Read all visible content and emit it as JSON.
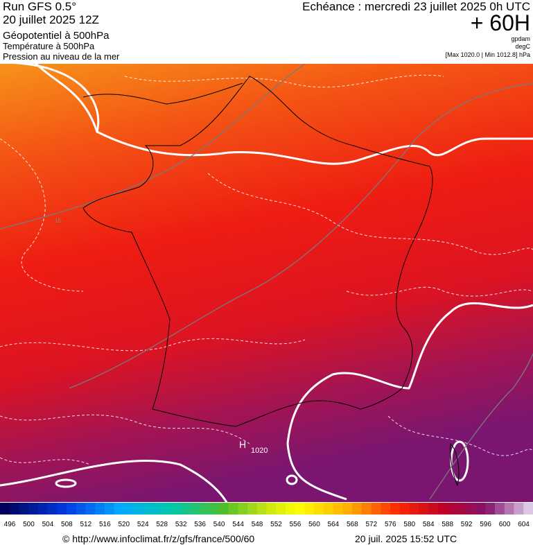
{
  "header": {
    "run": "Run GFS 0.5°",
    "date": "20 juillet 2025 12Z",
    "field1": "Géopotentiel à 500hPa",
    "field2": "Température à 500hPa",
    "field3": "Pression au niveau de la mer",
    "echeance": "Echéance : mercredi 23 juillet 2025 0h UTC",
    "lead": "+ 60H",
    "unit1": "gpdam",
    "unit2": "degC",
    "range": "[Max 1020.0 | Min 1012.8] hPa"
  },
  "map": {
    "high": "H",
    "high_value": "1020",
    "temp_label": "16"
  },
  "colorbar": {
    "labels": [
      496,
      500,
      504,
      508,
      512,
      516,
      520,
      524,
      528,
      532,
      536,
      540,
      544,
      548,
      552,
      556,
      560,
      564,
      568,
      572,
      576,
      580,
      584,
      588,
      592,
      596,
      600,
      604
    ]
  },
  "footer": {
    "url": "© http://www.infoclimat.fr/z/gfs/france/500/60",
    "timestamp": "20 juil. 2025 15:52 UTC"
  }
}
